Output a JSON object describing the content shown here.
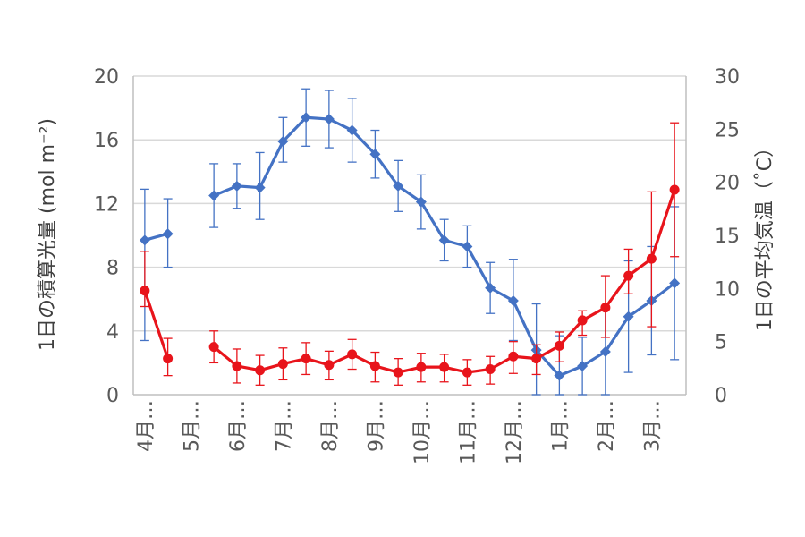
{
  "chart_data": {
    "type": "line",
    "categories": [
      "4月…",
      "",
      "5月…",
      "",
      "6月…",
      "",
      "7月…",
      "",
      "8月…",
      "",
      "9月…",
      "",
      "10月…",
      "",
      "11月…",
      "",
      "12月…",
      "",
      "1月…",
      "",
      "2月…",
      "",
      "3月…",
      ""
    ],
    "y_left": {
      "label": "1日の積算光量 (mol m⁻²)",
      "ticks": [
        "0",
        "4",
        "8",
        "12",
        "16",
        "20"
      ],
      "ylim": [
        0,
        20
      ]
    },
    "y_right": {
      "label": "1日の平均気温（˚C）",
      "ticks": [
        "0",
        "5",
        "10",
        "15",
        "20",
        "25",
        "30"
      ],
      "ylim": [
        0,
        30
      ]
    },
    "grid": true,
    "series": [
      {
        "axis": "left",
        "color": "#4472C4",
        "marker": "diamond",
        "values": [
          9.7,
          10.1,
          null,
          12.5,
          13.1,
          13.0,
          15.9,
          17.4,
          17.3,
          16.6,
          15.1,
          13.1,
          12.1,
          9.7,
          9.3,
          6.7,
          5.9,
          2.8,
          1.2,
          1.8,
          2.7,
          4.9,
          5.9,
          7.0
        ],
        "err_low": [
          6.3,
          2.1,
          null,
          2.0,
          1.4,
          2.0,
          1.3,
          1.8,
          1.8,
          2.0,
          1.5,
          1.6,
          1.7,
          1.3,
          1.3,
          1.6,
          2.5,
          2.8,
          1.2,
          1.8,
          2.7,
          3.5,
          3.4,
          4.8
        ],
        "err_high": [
          3.2,
          2.2,
          null,
          2.0,
          1.4,
          2.2,
          1.5,
          1.8,
          1.8,
          2.0,
          1.5,
          1.6,
          1.7,
          1.3,
          1.3,
          1.6,
          2.6,
          2.9,
          2.5,
          1.8,
          2.7,
          3.5,
          3.4,
          4.8
        ]
      },
      {
        "axis": "right",
        "color": "#E8141B",
        "marker": "circle",
        "values": [
          9.8,
          3.4,
          null,
          4.5,
          2.7,
          2.3,
          2.9,
          3.4,
          2.8,
          3.8,
          2.7,
          2.1,
          2.6,
          2.6,
          2.1,
          2.4,
          3.6,
          3.4,
          4.6,
          7.0,
          8.2,
          11.2,
          12.8,
          19.3
        ],
        "err_low": [
          1.5,
          1.6,
          null,
          1.5,
          1.6,
          1.4,
          1.5,
          1.5,
          1.4,
          1.4,
          1.5,
          1.2,
          1.4,
          1.4,
          1.2,
          1.4,
          1.6,
          1.5,
          1.5,
          1.4,
          2.8,
          1.7,
          6.4,
          6.3
        ],
        "err_high": [
          3.7,
          1.9,
          null,
          1.5,
          1.6,
          1.4,
          1.5,
          1.5,
          1.3,
          1.4,
          1.3,
          1.3,
          1.3,
          1.2,
          1.2,
          1.2,
          1.4,
          1.3,
          1.3,
          0.9,
          3.0,
          2.5,
          6.3,
          6.3
        ]
      }
    ]
  }
}
